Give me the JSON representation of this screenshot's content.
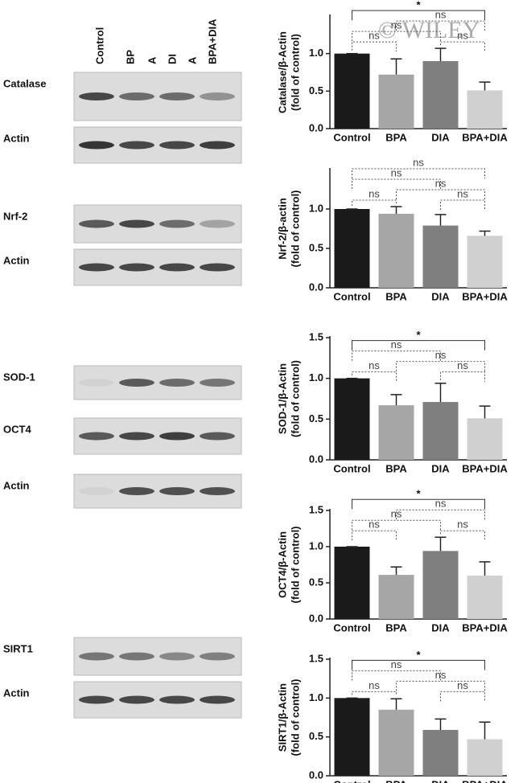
{
  "watermark": "© WILEY",
  "blot_columns": [
    "Control",
    "BP",
    "A",
    "DI",
    "A",
    "BPA+DIA"
  ],
  "blots": [
    "Catalase",
    "Actin",
    "Nrf-2",
    "Actin",
    "SOD-1",
    "OCT4",
    "Actin",
    "SIRT1",
    "Actin"
  ],
  "chart_data": [
    {
      "type": "bar",
      "ylabel": [
        "Catalase/β-Actin",
        "(fold of control)"
      ],
      "categories": [
        "Control",
        "BPA",
        "DIA",
        "BPA+DIA"
      ],
      "values": [
        1.0,
        0.72,
        0.9,
        0.51
      ],
      "errors": [
        0,
        0.21,
        0.17,
        0.11
      ],
      "colors": [
        "#1a1a1a",
        "#a6a6a6",
        "#7f7f7f",
        "#d0d0d0"
      ],
      "ylim": [
        0,
        1.5
      ],
      "yticks": [
        {
          "value": 0,
          "label": "0.0"
        },
        0.5,
        {
          "value": 1,
          "label": "1.0"
        }
      ],
      "comparisons": [
        {
          "label": "ns",
          "between": [
            0,
            1
          ]
        },
        {
          "label": "ns",
          "between": [
            2,
            3
          ]
        },
        {
          "label": "ns",
          "between": [
            0,
            2
          ]
        },
        {
          "label": "ns",
          "between": [
            1,
            3
          ]
        },
        {
          "label": "*",
          "between": [
            0,
            3
          ]
        }
      ]
    },
    {
      "type": "bar",
      "ylabel": [
        "Nrf-2/β-actin",
        "(fold of control)"
      ],
      "categories": [
        "Control",
        "BPA",
        "DIA",
        "BPA+DIA"
      ],
      "values": [
        1.0,
        0.94,
        0.79,
        0.66
      ],
      "errors": [
        0,
        0.09,
        0.14,
        0.06
      ],
      "colors": [
        "#1a1a1a",
        "#a6a6a6",
        "#7f7f7f",
        "#d0d0d0"
      ],
      "ylim": [
        0,
        1.5
      ],
      "yticks": [
        {
          "value": 0,
          "label": "0.0"
        },
        0.5,
        {
          "value": 1,
          "label": "1.0"
        }
      ],
      "comparisons": [
        {
          "label": "ns",
          "between": [
            0,
            1
          ]
        },
        {
          "label": "ns",
          "between": [
            2,
            3
          ]
        },
        {
          "label": "ns",
          "between": [
            1,
            3
          ]
        },
        {
          "label": "ns",
          "between": [
            0,
            2
          ]
        },
        {
          "label": "ns",
          "between": [
            0,
            3
          ]
        }
      ]
    },
    {
      "type": "bar",
      "ylabel": [
        "SOD-1/β-Actin",
        "(fold of control)"
      ],
      "categories": [
        "Control",
        "BPA",
        "DIA",
        "BPA+DIA"
      ],
      "values": [
        1.0,
        0.67,
        0.71,
        0.51
      ],
      "errors": [
        0,
        0.13,
        0.23,
        0.15
      ],
      "colors": [
        "#1a1a1a",
        "#a6a6a6",
        "#7f7f7f",
        "#d0d0d0"
      ],
      "ylim": [
        0,
        1.5
      ],
      "yticks": [
        {
          "value": 0,
          "label": "0.0"
        },
        0.5,
        {
          "value": 1,
          "label": "1.0"
        },
        1.5
      ],
      "comparisons": [
        {
          "label": "ns",
          "between": [
            0,
            1
          ]
        },
        {
          "label": "ns",
          "between": [
            2,
            3
          ]
        },
        {
          "label": "ns",
          "between": [
            1,
            3
          ]
        },
        {
          "label": "ns",
          "between": [
            0,
            2
          ]
        },
        {
          "label": "*",
          "between": [
            0,
            3
          ]
        }
      ]
    },
    {
      "type": "bar",
      "ylabel": [
        "OCT4/β-Actin",
        "(fold of control)"
      ],
      "categories": [
        "Control",
        "BPA",
        "DIA",
        "BPA+DIA"
      ],
      "values": [
        1.0,
        0.61,
        0.94,
        0.6
      ],
      "errors": [
        0,
        0.11,
        0.19,
        0.19
      ],
      "colors": [
        "#1a1a1a",
        "#a6a6a6",
        "#7f7f7f",
        "#d0d0d0"
      ],
      "ylim": [
        0,
        1.5
      ],
      "yticks": [
        {
          "value": 0,
          "label": "0.0"
        },
        0.5,
        {
          "value": 1,
          "label": "1.0"
        },
        1.5
      ],
      "comparisons": [
        {
          "label": "ns",
          "between": [
            0,
            1
          ]
        },
        {
          "label": "ns",
          "between": [
            2,
            3
          ]
        },
        {
          "label": "ns",
          "between": [
            0,
            2
          ]
        },
        {
          "label": "ns",
          "between": [
            1,
            3
          ]
        },
        {
          "label": "*",
          "between": [
            0,
            3
          ]
        }
      ]
    },
    {
      "type": "bar",
      "ylabel": [
        "SIRT1/β-Actin",
        "(fold of control)"
      ],
      "categories": [
        "Control",
        "BPA",
        "DIA",
        "BPA+DIA"
      ],
      "values": [
        1.0,
        0.85,
        0.59,
        0.47
      ],
      "errors": [
        0,
        0.14,
        0.14,
        0.22
      ],
      "colors": [
        "#1a1a1a",
        "#a6a6a6",
        "#7f7f7f",
        "#d0d0d0"
      ],
      "ylim": [
        0,
        1.5
      ],
      "yticks": [
        {
          "value": 0,
          "label": "0.0"
        },
        0.5,
        {
          "value": 1,
          "label": "1.0"
        },
        1.5
      ],
      "comparisons": [
        {
          "label": "ns",
          "between": [
            0,
            1
          ]
        },
        {
          "label": "ns",
          "between": [
            2,
            3
          ]
        },
        {
          "label": "ns",
          "between": [
            1,
            3
          ]
        },
        {
          "label": "ns",
          "between": [
            0,
            2
          ]
        },
        {
          "label": "*",
          "between": [
            0,
            3
          ]
        }
      ]
    }
  ]
}
